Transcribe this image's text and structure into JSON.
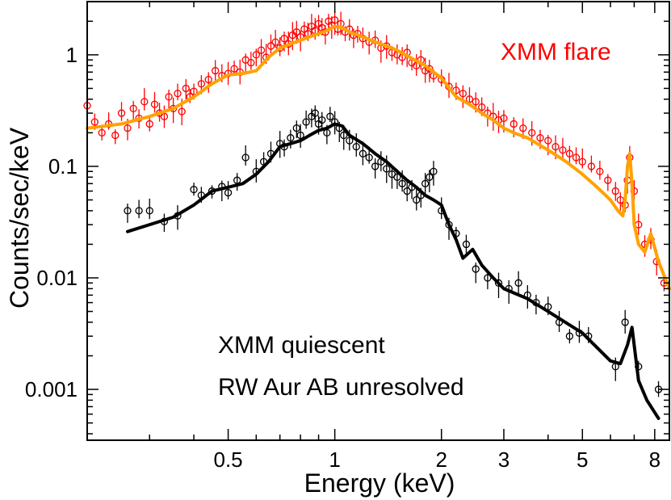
{
  "chart_data": {
    "type": "scatter",
    "xscale": "log",
    "yscale": "log",
    "xlabel": "Energy (keV)",
    "ylabel": "Counts/sec/keV",
    "xlim": [
      0.2,
      8.8
    ],
    "ylim": [
      0.00035,
      3.0
    ],
    "xticks": [
      {
        "value": 0.5,
        "label": "0.5"
      },
      {
        "value": 1,
        "label": "1"
      },
      {
        "value": 2,
        "label": "2"
      },
      {
        "value": 3,
        "label": "3"
      },
      {
        "value": 5,
        "label": "5"
      },
      {
        "value": 8,
        "label": "8"
      }
    ],
    "yticks": [
      {
        "value": 0.001,
        "label": "0.001"
      },
      {
        "value": 0.01,
        "label": "0.01"
      },
      {
        "value": 0.1,
        "label": "0.1"
      },
      {
        "value": 1,
        "label": "1"
      }
    ],
    "annotations": [
      {
        "text": "XMM flare",
        "color": "#ff0000"
      },
      {
        "text": "XMM quiescent",
        "color": "#000000"
      },
      {
        "text": "RW Aur AB unresolved",
        "color": "#000000"
      }
    ],
    "series": [
      {
        "name": "XMM flare data",
        "kind": "points",
        "color": "#ff0000",
        "x": [
          0.2,
          0.21,
          0.22,
          0.23,
          0.24,
          0.25,
          0.26,
          0.27,
          0.28,
          0.29,
          0.3,
          0.31,
          0.32,
          0.33,
          0.34,
          0.35,
          0.36,
          0.37,
          0.38,
          0.39,
          0.4,
          0.42,
          0.44,
          0.46,
          0.48,
          0.5,
          0.52,
          0.54,
          0.56,
          0.58,
          0.6,
          0.62,
          0.64,
          0.66,
          0.68,
          0.7,
          0.72,
          0.74,
          0.76,
          0.78,
          0.8,
          0.82,
          0.84,
          0.86,
          0.88,
          0.9,
          0.92,
          0.94,
          0.96,
          0.98,
          1.0,
          1.02,
          1.04,
          1.07,
          1.1,
          1.13,
          1.16,
          1.2,
          1.25,
          1.3,
          1.35,
          1.4,
          1.45,
          1.5,
          1.55,
          1.6,
          1.65,
          1.7,
          1.75,
          1.8,
          1.85,
          1.9,
          2.0,
          2.1,
          2.2,
          2.3,
          2.4,
          2.5,
          2.6,
          2.7,
          2.8,
          2.9,
          3.0,
          3.2,
          3.4,
          3.6,
          3.8,
          4.0,
          4.2,
          4.4,
          4.6,
          4.8,
          5.0,
          5.3,
          5.6,
          5.9,
          6.2,
          6.4,
          6.6,
          6.7,
          6.8,
          7.0,
          7.2,
          7.5,
          7.8,
          8.1,
          8.5
        ],
        "y": [
          0.35,
          0.25,
          0.2,
          0.24,
          0.19,
          0.3,
          0.22,
          0.33,
          0.27,
          0.38,
          0.24,
          0.36,
          0.3,
          0.28,
          0.42,
          0.33,
          0.45,
          0.31,
          0.5,
          0.42,
          0.47,
          0.55,
          0.6,
          0.72,
          0.65,
          0.68,
          0.75,
          0.7,
          0.9,
          0.85,
          1.0,
          1.1,
          0.95,
          1.2,
          1.3,
          1.15,
          1.4,
          1.25,
          1.5,
          1.6,
          1.45,
          1.7,
          1.55,
          1.8,
          1.65,
          1.9,
          1.75,
          1.6,
          2.0,
          1.85,
          2.05,
          1.7,
          1.9,
          1.6,
          1.7,
          1.5,
          1.55,
          1.4,
          1.3,
          1.35,
          1.15,
          1.2,
          1.05,
          1.0,
          0.95,
          1.05,
          0.85,
          0.8,
          0.9,
          0.72,
          0.75,
          0.65,
          0.6,
          0.52,
          0.48,
          0.45,
          0.4,
          0.38,
          0.34,
          0.3,
          0.28,
          0.26,
          0.27,
          0.24,
          0.22,
          0.2,
          0.18,
          0.17,
          0.15,
          0.14,
          0.13,
          0.12,
          0.11,
          0.1,
          0.09,
          0.075,
          0.06,
          0.05,
          0.045,
          0.075,
          0.12,
          0.06,
          0.03,
          0.02,
          0.022,
          0.014,
          0.009
        ]
      },
      {
        "name": "XMM flare model",
        "kind": "line",
        "color": "#ffa200",
        "x": [
          0.2,
          0.25,
          0.3,
          0.35,
          0.4,
          0.45,
          0.5,
          0.55,
          0.6,
          0.65,
          0.7,
          0.75,
          0.8,
          0.85,
          0.9,
          0.95,
          1.0,
          1.05,
          1.1,
          1.2,
          1.3,
          1.4,
          1.5,
          1.6,
          1.8,
          2.0,
          2.2,
          2.4,
          2.6,
          2.8,
          3.0,
          3.2,
          3.5,
          4.0,
          4.5,
          5.0,
          5.5,
          6.0,
          6.3,
          6.5,
          6.6,
          6.7,
          6.8,
          6.9,
          7.0,
          7.2,
          7.5,
          7.8,
          8.2,
          8.8
        ],
        "y": [
          0.22,
          0.24,
          0.28,
          0.33,
          0.42,
          0.55,
          0.66,
          0.68,
          0.72,
          0.95,
          1.15,
          1.25,
          1.35,
          1.45,
          1.55,
          1.65,
          1.8,
          1.75,
          1.6,
          1.45,
          1.3,
          1.2,
          1.1,
          0.98,
          0.8,
          0.62,
          0.42,
          0.36,
          0.3,
          0.26,
          0.22,
          0.2,
          0.18,
          0.14,
          0.11,
          0.085,
          0.065,
          0.05,
          0.04,
          0.036,
          0.05,
          0.1,
          0.13,
          0.07,
          0.03,
          0.02,
          0.017,
          0.025,
          0.014,
          0.008
        ]
      },
      {
        "name": "XMM quiescent data",
        "kind": "points",
        "color": "#000000",
        "x": [
          0.26,
          0.28,
          0.3,
          0.33,
          0.36,
          0.4,
          0.42,
          0.45,
          0.48,
          0.5,
          0.53,
          0.56,
          0.6,
          0.63,
          0.66,
          0.7,
          0.72,
          0.75,
          0.78,
          0.8,
          0.83,
          0.86,
          0.88,
          0.9,
          0.92,
          0.95,
          0.97,
          1.0,
          1.03,
          1.06,
          1.1,
          1.15,
          1.2,
          1.25,
          1.3,
          1.35,
          1.4,
          1.45,
          1.5,
          1.55,
          1.6,
          1.65,
          1.7,
          1.75,
          1.8,
          1.85,
          1.9,
          2.0,
          2.1,
          2.2,
          2.35,
          2.5,
          2.7,
          2.9,
          3.1,
          3.3,
          3.5,
          3.7,
          4.0,
          4.3,
          4.6,
          4.9,
          5.2,
          6.2,
          6.6,
          7.2,
          8.2
        ],
        "y": [
          0.04,
          0.04,
          0.04,
          0.032,
          0.036,
          0.062,
          0.055,
          0.06,
          0.066,
          0.058,
          0.075,
          0.12,
          0.09,
          0.11,
          0.13,
          0.16,
          0.15,
          0.18,
          0.22,
          0.19,
          0.25,
          0.28,
          0.3,
          0.24,
          0.26,
          0.2,
          0.28,
          0.25,
          0.22,
          0.19,
          0.17,
          0.15,
          0.13,
          0.12,
          0.1,
          0.11,
          0.095,
          0.085,
          0.08,
          0.07,
          0.06,
          0.065,
          0.05,
          0.055,
          0.07,
          0.08,
          0.09,
          0.04,
          0.03,
          0.025,
          0.02,
          0.012,
          0.01,
          0.009,
          0.008,
          0.009,
          0.007,
          0.006,
          0.0055,
          0.004,
          0.003,
          0.0032,
          0.003,
          0.0016,
          0.004,
          0.0016,
          0.001
        ]
      },
      {
        "name": "XMM quiescent model",
        "kind": "line",
        "color": "#000000",
        "x": [
          0.26,
          0.3,
          0.35,
          0.4,
          0.45,
          0.5,
          0.55,
          0.6,
          0.65,
          0.7,
          0.75,
          0.8,
          0.85,
          0.9,
          0.95,
          1.0,
          1.05,
          1.1,
          1.2,
          1.3,
          1.4,
          1.5,
          1.6,
          1.7,
          1.8,
          1.9,
          2.0,
          2.1,
          2.2,
          2.3,
          2.45,
          2.6,
          2.8,
          3.0,
          3.5,
          4.0,
          5.0,
          6.0,
          6.4,
          6.7,
          6.9,
          7.2,
          7.6,
          8.2
        ],
        "y": [
          0.026,
          0.03,
          0.035,
          0.045,
          0.06,
          0.065,
          0.07,
          0.085,
          0.11,
          0.15,
          0.16,
          0.17,
          0.19,
          0.21,
          0.22,
          0.24,
          0.23,
          0.19,
          0.16,
          0.13,
          0.11,
          0.09,
          0.075,
          0.065,
          0.055,
          0.05,
          0.045,
          0.03,
          0.022,
          0.015,
          0.018,
          0.013,
          0.01,
          0.008,
          0.0065,
          0.005,
          0.0032,
          0.0018,
          0.0017,
          0.0025,
          0.0036,
          0.0012,
          0.0008,
          0.00055
        ]
      }
    ]
  }
}
